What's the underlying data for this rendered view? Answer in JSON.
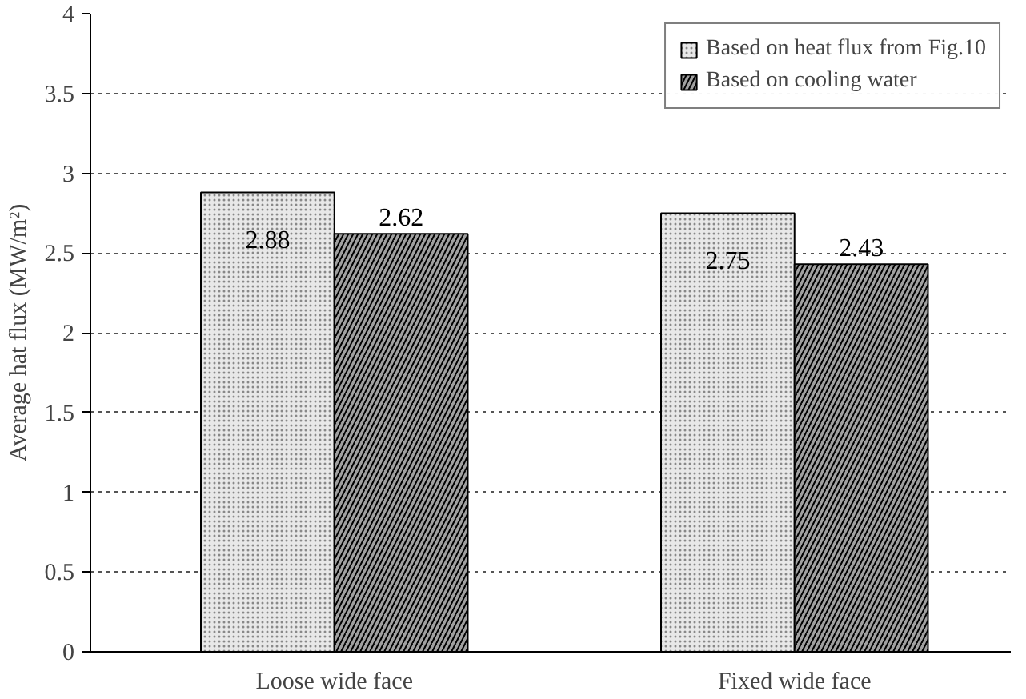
{
  "chart_data": {
    "type": "bar",
    "ylabel": "Average hat flux (MW/m²)",
    "categories": [
      "Loose wide face",
      "Fixed wide face"
    ],
    "series": [
      {
        "name": "Based on heat flux from Fig.10",
        "color": "#e8e8e8",
        "values": [
          2.88,
          2.75
        ]
      },
      {
        "name": "Based on cooling water",
        "color": "#a0a0a0",
        "values": [
          2.62,
          2.43
        ]
      }
    ],
    "ylim": [
      0,
      4
    ],
    "yticks": [
      0,
      0.5,
      1,
      1.5,
      2,
      2.5,
      3,
      3.5,
      4
    ],
    "grid": "y",
    "legend": "top right",
    "data_labels": true
  }
}
